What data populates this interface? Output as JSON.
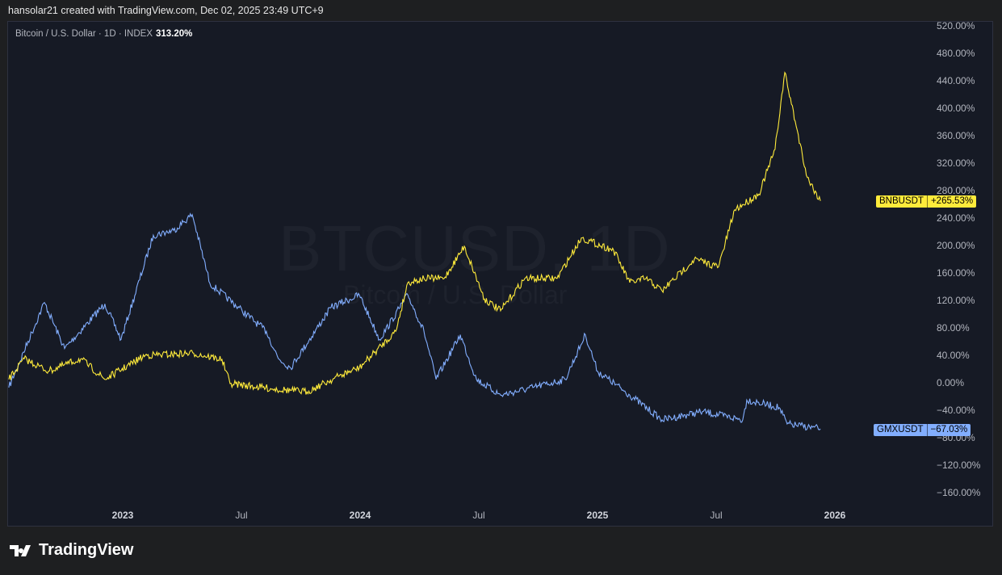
{
  "header": "hansolar21 created with TradingView.com, Dec 02, 2025 23:49 UTC+9",
  "legend": {
    "symbol": "Bitcoin / U.S. Dollar · 1D · INDEX",
    "value": "313.20%"
  },
  "watermark": {
    "ticker": "BTCUSD, 1D",
    "name": "Bitcoin / U.S. Dollar"
  },
  "footer": {
    "brand": "TradingView"
  },
  "tags": [
    {
      "name": "BNBUSDT",
      "value": "+265.53%",
      "color": "#ffeb3b"
    },
    {
      "name": "GMXUSDT",
      "value": "−67.03%",
      "color": "#82aeff"
    }
  ],
  "chart_data": {
    "type": "line",
    "ylim": [
      -180,
      530
    ],
    "xlim": [
      2022.5,
      2026.6
    ],
    "yticks": [
      520,
      480,
      440,
      400,
      360,
      320,
      280,
      240,
      200,
      160,
      120,
      80,
      40,
      0,
      -40,
      -80,
      -120,
      -160
    ],
    "ytick_labels": [
      "520.00%",
      "480.00%",
      "440.00%",
      "400.00%",
      "360.00%",
      "320.00%",
      "280.00%",
      "240.00%",
      "200.00%",
      "160.00%",
      "120.00%",
      "80.00%",
      "40.00%",
      "0.00%",
      "−40.00%",
      "−80.00%",
      "−120.00%",
      "−160.00%"
    ],
    "xticks": [
      {
        "x": 2023,
        "label": "2023",
        "bold": true
      },
      {
        "x": 2023.5,
        "label": "Jul",
        "bold": false
      },
      {
        "x": 2024,
        "label": "2024",
        "bold": true
      },
      {
        "x": 2024.5,
        "label": "Jul",
        "bold": false
      },
      {
        "x": 2025,
        "label": "2025",
        "bold": true
      },
      {
        "x": 2025.5,
        "label": "Jul",
        "bold": false
      },
      {
        "x": 2026,
        "label": "2026",
        "bold": true
      }
    ],
    "series": [
      {
        "name": "GMXUSDT",
        "color": "#82aeff",
        "x": [
          2022.52,
          2022.67,
          2022.755,
          2022.925,
          2022.993,
          2023.129,
          2023.214,
          2023.293,
          2023.367,
          2023.503,
          2023.605,
          2023.656,
          2023.707,
          2023.878,
          2023.997,
          2024.082,
          2024.201,
          2024.269,
          2024.32,
          2024.422,
          2024.49,
          2024.592,
          2024.728,
          2024.864,
          2024.949,
          2025.0,
          2025.136,
          2025.272,
          2025.442,
          2025.612,
          2025.629,
          2025.765,
          2025.799,
          2025.939
        ],
        "y": [
          -7,
          117,
          50,
          115,
          63,
          215,
          222,
          245,
          145,
          105,
          75,
          35,
          22,
          110,
          128,
          63,
          128,
          75,
          5,
          70,
          5,
          -18,
          -7,
          5,
          70,
          17,
          -18,
          -54,
          -42,
          -54,
          -25,
          -36,
          -60,
          -67
        ]
      },
      {
        "name": "BNBUSDT",
        "color": "#ffeb3b",
        "x": [
          2022.52,
          2022.585,
          2022.687,
          2022.823,
          2022.925,
          2023.095,
          2023.299,
          2023.418,
          2023.452,
          2023.639,
          2023.776,
          2023.912,
          2023.997,
          2024.15,
          2024.201,
          2024.269,
          2024.354,
          2024.439,
          2024.524,
          2024.592,
          2024.694,
          2024.83,
          2024.932,
          2025.068,
          2025.136,
          2025.204,
          2025.272,
          2025.408,
          2025.51,
          2025.578,
          2025.68,
          2025.748,
          2025.789,
          2025.833,
          2025.884,
          2025.939
        ],
        "y": [
          5,
          35,
          17,
          35,
          5,
          40,
          43,
          34,
          -1,
          -9,
          -13,
          10,
          22,
          75,
          146,
          152,
          152,
          199,
          122,
          105,
          152,
          152,
          211,
          193,
          146,
          152,
          134,
          180,
          169,
          252,
          275,
          340,
          452,
          381,
          299,
          265
        ]
      }
    ]
  }
}
